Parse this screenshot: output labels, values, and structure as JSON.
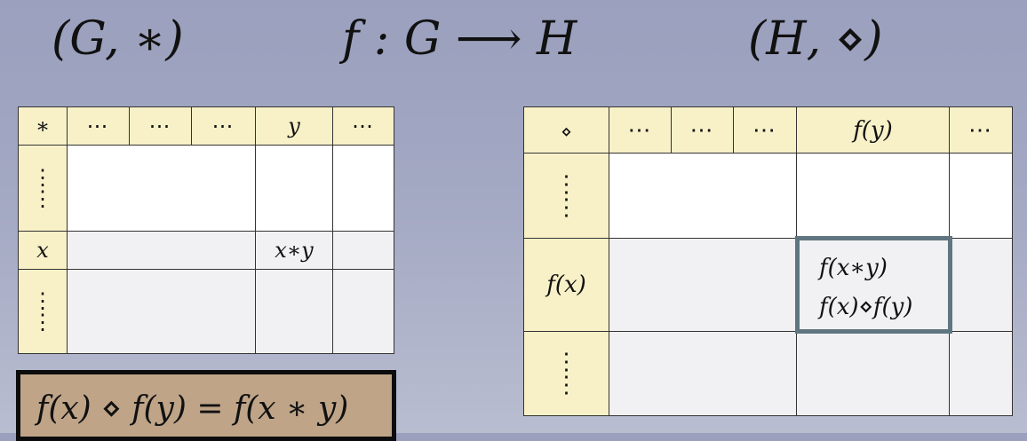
{
  "headings": {
    "group_g": "(G, ∗)",
    "hom": "f : G ⟶ H",
    "group_h": "(H, ⋄)"
  },
  "table_g": {
    "op": "∗",
    "col_dots": "⋯",
    "col_y": "y",
    "col_end": "⋯",
    "row_x": "x",
    "vdot": "⋮",
    "result": "x∗y"
  },
  "table_h": {
    "op": "⋄",
    "col_dots": "⋯",
    "col_fy": "f(y)",
    "col_end": "⋯",
    "row_fx": "f(x)",
    "vdot": "⋮",
    "result_line1": "f(x∗y)",
    "result_line2": "f(x)⋄f(y)"
  },
  "identity": "f(x) ⋄ f(y) = f(x ∗ y)",
  "colors": {
    "background": "#a3a8c3",
    "header_fill": "#f8f1c8",
    "highlight_border": "#5f7680",
    "identity_fill": "#bfa488"
  }
}
